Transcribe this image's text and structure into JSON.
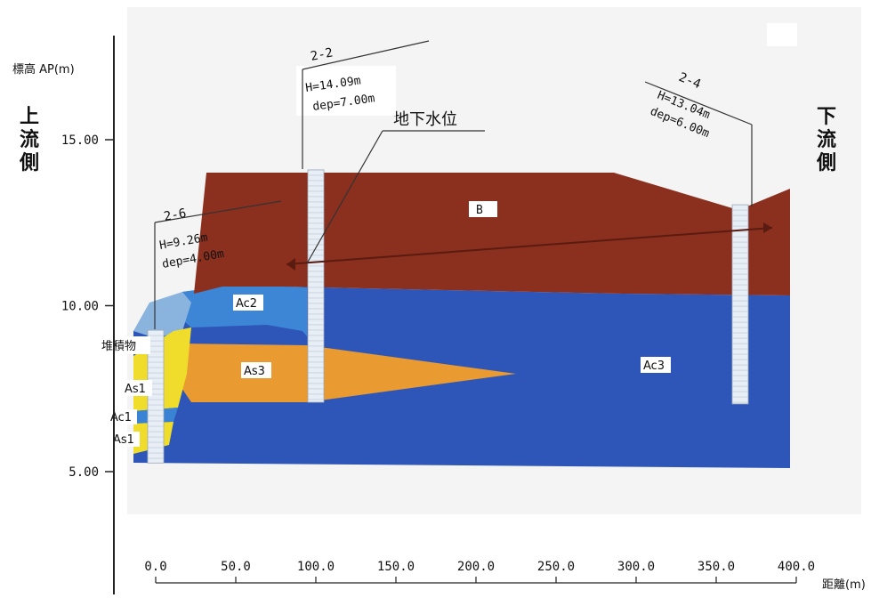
{
  "y_axis": {
    "label": "標高 AP(m)",
    "ticks": [
      {
        "value": 15.0,
        "label": "15.00"
      },
      {
        "value": 10.0,
        "label": "10.00"
      },
      {
        "value": 5.0,
        "label": "5.00"
      }
    ]
  },
  "x_axis": {
    "label": "距離(m)",
    "ticks": [
      {
        "value": 0,
        "label": "0.0"
      },
      {
        "value": 50,
        "label": "50.0"
      },
      {
        "value": 100,
        "label": "100.0"
      },
      {
        "value": 150,
        "label": "150.0"
      },
      {
        "value": 200,
        "label": "200.0"
      },
      {
        "value": 250,
        "label": "250.0"
      },
      {
        "value": 300,
        "label": "300.0"
      },
      {
        "value": 350,
        "label": "350.0"
      },
      {
        "value": 400,
        "label": "400.0"
      }
    ]
  },
  "upstream_label": "上流側",
  "downstream_label": "下流側",
  "groundwater_label": "地下水位",
  "layers": [
    {
      "name": "B",
      "color": "#8b2f1e"
    },
    {
      "name": "Ac2",
      "color": "#3a82d4"
    },
    {
      "name": "As3",
      "color": "#e99a30"
    },
    {
      "name": "Ac3",
      "color": "#2d56b8"
    },
    {
      "name": "堆積物",
      "color": "#8ab4dd"
    },
    {
      "name": "As1",
      "color": "#f0dc2a"
    },
    {
      "name": "Ac1",
      "color": "#3a82d4"
    },
    {
      "name": "As1",
      "color": "#f0dc2a"
    }
  ],
  "boreholes": [
    {
      "id": "2-6",
      "height": "H=9.26m",
      "depth": "dep=4.00m",
      "distance": 0,
      "top": 9.26,
      "bottom": 5.26
    },
    {
      "id": "2-2",
      "height": "H=14.09m",
      "depth": "dep=7.00m",
      "distance": 100,
      "top": 14.09,
      "bottom": 7.09
    },
    {
      "id": "2-4",
      "height": "H=13.04m",
      "depth": "dep=6.00m",
      "distance": 365,
      "top": 13.04,
      "bottom": 7.04
    }
  ]
}
